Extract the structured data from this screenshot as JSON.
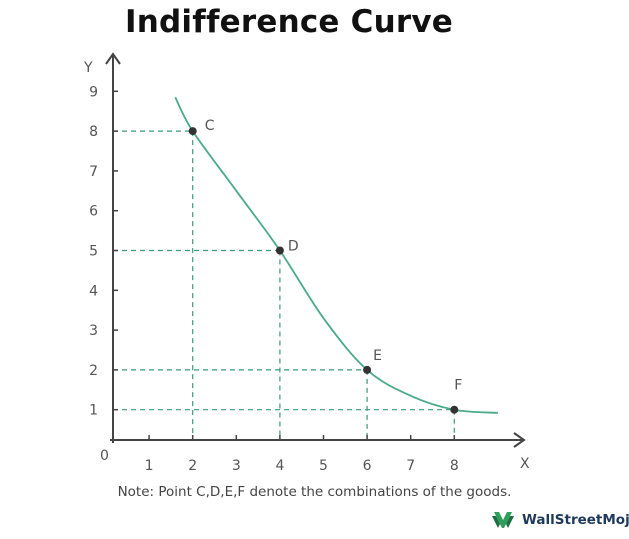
{
  "chart_data": {
    "type": "line",
    "title": "Indifference Curve",
    "xlabel": "X",
    "ylabel": "Y",
    "origin_label": "0",
    "xlim": [
      0,
      9.5
    ],
    "ylim": [
      0,
      9.5
    ],
    "x_ticks": [
      1,
      2,
      3,
      4,
      5,
      6,
      7,
      8
    ],
    "y_ticks": [
      1,
      2,
      3,
      4,
      5,
      6,
      7,
      8,
      9
    ],
    "curve": {
      "x": [
        1.6,
        2.0,
        3.0,
        4.0,
        5.0,
        6.0,
        7.0,
        8.0,
        9.0
      ],
      "y": [
        8.85,
        8.0,
        6.5,
        5.0,
        3.3,
        2.0,
        1.35,
        1.0,
        0.92
      ]
    },
    "points": [
      {
        "label": "C",
        "x": 2,
        "y": 8
      },
      {
        "label": "D",
        "x": 4,
        "y": 5
      },
      {
        "label": "E",
        "x": 6,
        "y": 2
      },
      {
        "label": "F",
        "x": 8,
        "y": 1
      }
    ],
    "note": "Note: Point C,D,E,F denote the combinations of the goods.",
    "colors": {
      "curve": "#4aaa8a",
      "guides": "#3a9a7a",
      "axis": "#444444",
      "point": "#333333",
      "text": "#555555"
    }
  },
  "brand": {
    "name": "WallStreetMojo",
    "icon": "wallstreetmojo-logo-icon"
  }
}
